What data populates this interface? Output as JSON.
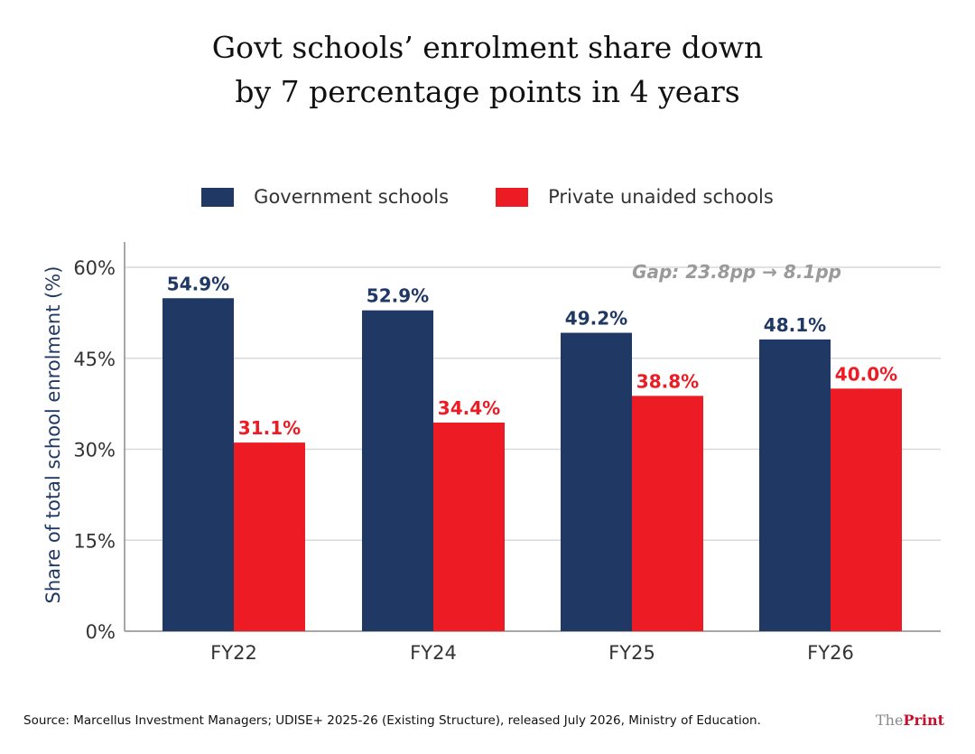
{
  "title_lines": [
    "Govt schools’ enrolment share down",
    "by 7 percentage points in 4 years"
  ],
  "colors": {
    "government": "#203864",
    "private": "#ed1c24",
    "grid": "#d9d9d9",
    "annotation": "#9a9a9a"
  },
  "chart_data": {
    "type": "bar",
    "title": "Govt schools’ enrolment share down by 7 percentage points in 4 years",
    "categories": [
      "FY22",
      "FY24",
      "FY25",
      "FY26"
    ],
    "series": [
      {
        "name": "Government schools",
        "values": [
          54.9,
          52.9,
          49.2,
          48.1
        ],
        "labels": [
          "54.9%",
          "52.9%",
          "49.2%",
          "48.1%"
        ]
      },
      {
        "name": "Private unaided schools",
        "values": [
          31.1,
          34.4,
          38.8,
          40.0
        ],
        "labels": [
          "31.1%",
          "34.4%",
          "38.8%",
          "40.0%"
        ]
      }
    ],
    "ylabel": "Share of total school enrolment (%)",
    "xlabel": "",
    "ylim": [
      0,
      60
    ],
    "yticks": [
      0,
      15,
      30,
      45,
      60
    ],
    "ytick_labels": [
      "0%",
      "15%",
      "30%",
      "45%",
      "60%"
    ],
    "grid": true,
    "legend_position": "top",
    "annotation": "Gap: 23.8pp → 8.1pp"
  },
  "source": "Source:  Marcellus Investment Managers; UDISE+ 2025-26 (Existing Structure), released July 2026, Ministry of Education.",
  "brand": {
    "prefix": "The",
    "name": "Print"
  }
}
